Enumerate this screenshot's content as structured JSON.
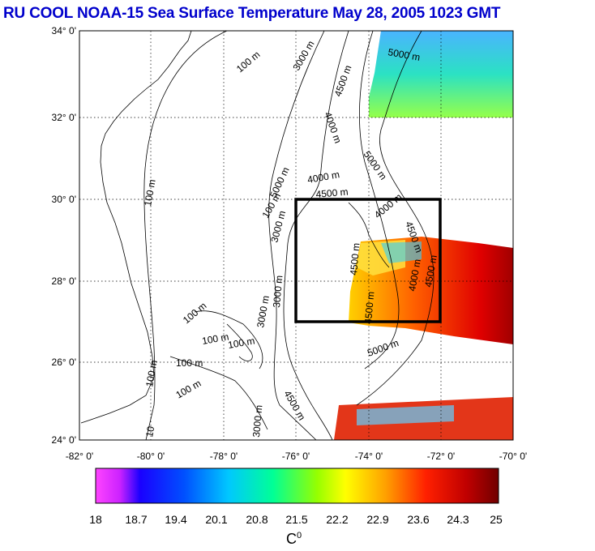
{
  "title": "RU COOL  NOAA-15 Sea Surface Temperature May 28, 2005 1023 GMT",
  "map": {
    "lat_labels": [
      "34° 0'",
      "32° 0'",
      "30° 0'",
      "28° 0'",
      "26° 0'",
      "24° 0'"
    ],
    "lon_labels": [
      "-82° 0'",
      "-80° 0'",
      "-78° 0'",
      "-76° 0'",
      "-74° 0'",
      "-72° 0'",
      "-70° 0'"
    ],
    "extent": {
      "lat_min": 24,
      "lat_max": 34,
      "lon_min": -82,
      "lon_max": -70
    },
    "box": {
      "lat_min": 27,
      "lat_max": 30,
      "lon_min": -76,
      "lon_max": -72
    },
    "contour_labels": [
      "100 m",
      "3000 m",
      "4000 m",
      "4500 m",
      "5000 m",
      "5000 m",
      "5000 m",
      "4000 m",
      "4500 m",
      "100 m",
      "3000 m",
      "100 m",
      "4000 m",
      "4500 m",
      "3000 m",
      "4500 m",
      "100 m",
      "100 m",
      "100 m",
      "100 m",
      "100 m",
      "3000 m",
      "4500 m",
      "100 m",
      "3000 m",
      "4500 m",
      "4000 m",
      "4500 m",
      "5000 m",
      "10"
    ]
  },
  "colorbar": {
    "ticks": [
      "18",
      "18.7",
      "19.4",
      "20.1",
      "20.8",
      "21.5",
      "22.2",
      "22.9",
      "23.6",
      "24.3",
      "25"
    ],
    "unit": "C",
    "unit_sup": "0",
    "colors": [
      "#ff33ff",
      "#8000ff",
      "#0000ff",
      "#0080ff",
      "#00ffff",
      "#00ff80",
      "#80ff00",
      "#ffff00",
      "#ff8000",
      "#ff0000",
      "#800000"
    ]
  }
}
